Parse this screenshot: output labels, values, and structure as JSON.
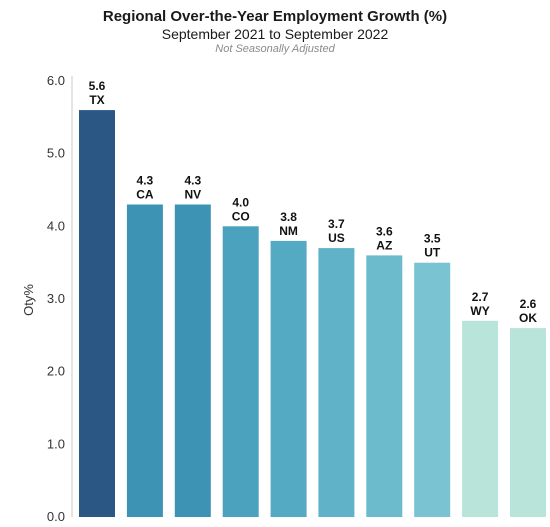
{
  "chart_data": {
    "type": "bar",
    "title": "Regional Over-the-Year Employment Growth (%)",
    "subtitle": "September 2021 to September 2022",
    "note": "Not Seasonally Adjusted",
    "ylabel": "Oty%",
    "xlabel": "",
    "ylim": [
      0,
      6
    ],
    "yticks": [
      "0.0",
      "1.0",
      "2.0",
      "3.0",
      "4.0",
      "5.0",
      "6.0"
    ],
    "categories": [
      "TX",
      "CA",
      "NV",
      "CO",
      "NM",
      "US",
      "AZ",
      "UT",
      "WY",
      "OK"
    ],
    "values": [
      5.6,
      4.3,
      4.3,
      4.0,
      3.8,
      3.7,
      3.6,
      3.5,
      2.7,
      2.6
    ],
    "value_labels": [
      "5.6",
      "4.3",
      "4.3",
      "4.0",
      "3.8",
      "3.7",
      "3.6",
      "3.5",
      "2.7",
      "2.6"
    ],
    "colors": [
      "#2a5783",
      "#3d93b3",
      "#3d93b3",
      "#4aa2be",
      "#55aac3",
      "#5fb2c8",
      "#6bbbcd",
      "#79c3d2",
      "#b9e4d9",
      "#b9e4d9"
    ],
    "grid": false,
    "legend": "none"
  }
}
